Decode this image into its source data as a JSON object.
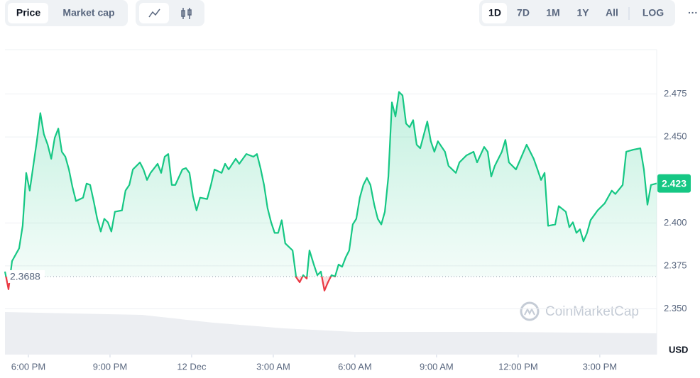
{
  "controls": {
    "metric": [
      "Price",
      "Market cap"
    ],
    "range": [
      "1D",
      "7D",
      "1M",
      "1Y",
      "All"
    ],
    "scale": "LOG",
    "more": "···"
  },
  "chart_data": {
    "type": "line",
    "x": [
      17.14,
      17.27,
      17.4,
      17.66,
      17.79,
      17.92,
      18.05,
      18.18,
      18.31,
      18.44,
      18.57,
      18.71,
      18.84,
      18.97,
      19.1,
      19.23,
      19.36,
      19.49,
      19.62,
      19.75,
      20.01,
      20.14,
      20.27,
      20.4,
      20.53,
      20.66,
      20.79,
      20.92,
      21.05,
      21.18,
      21.44,
      21.57,
      21.71,
      21.84,
      22.1,
      22.23,
      22.36,
      22.49,
      22.75,
      22.88,
      23.01,
      23.14,
      23.27,
      23.4,
      23.66,
      23.79,
      23.92,
      24.05,
      24.18,
      24.31,
      24.57,
      24.71,
      24.84,
      25.1,
      25.23,
      25.36,
      25.62,
      25.75,
      26.01,
      26.27,
      26.4,
      26.53,
      26.66,
      26.79,
      26.92,
      27.05,
      27.18,
      27.31,
      27.44,
      27.71,
      27.84,
      27.97,
      28.1,
      28.23,
      28.33,
      28.49,
      28.62,
      28.75,
      28.88,
      29.01,
      29.14,
      29.27,
      29.4,
      29.53,
      29.66,
      29.79,
      29.92,
      30.05,
      30.18,
      30.31,
      30.44,
      30.57,
      30.71,
      30.84,
      30.97,
      31.1,
      31.23,
      31.36,
      31.49,
      31.62,
      31.75,
      31.88,
      32.01,
      32.14,
      32.27,
      32.4,
      32.66,
      32.79,
      32.92,
      33.05,
      33.31,
      33.44,
      33.71,
      33.84,
      34.1,
      34.36,
      34.49,
      34.75,
      34.88,
      35.01,
      35.14,
      35.4,
      35.53,
      35.66,
      35.92,
      36.31,
      36.57,
      36.71,
      36.84,
      36.97,
      37.1,
      37.36,
      37.49,
      37.75,
      37.88,
      38.01,
      38.14,
      38.27,
      38.4,
      38.53,
      38.66,
      38.92,
      39.18,
      39.44,
      39.57,
      39.84,
      39.97,
      40.23,
      40.49,
      40.62,
      40.75,
      40.88,
      41.09
    ],
    "series": [
      {
        "color": "#16c784",
        "negative_color": "#ea3943",
        "values": [
          2.3717,
          2.3614,
          2.3778,
          2.3852,
          2.3983,
          2.4291,
          2.4188,
          2.4332,
          2.4475,
          2.4639,
          2.4516,
          2.4455,
          2.4373,
          2.4496,
          2.4549,
          2.4414,
          2.4385,
          2.4311,
          2.4209,
          2.4127,
          2.4147,
          2.4229,
          2.4221,
          2.4127,
          2.4024,
          2.395,
          2.4024,
          2.4004,
          2.395,
          2.4065,
          2.4073,
          2.4188,
          2.4221,
          2.4311,
          2.4352,
          2.4311,
          2.425,
          2.4291,
          2.4344,
          2.4291,
          2.4385,
          2.4401,
          2.4221,
          2.4221,
          2.4311,
          2.4319,
          2.4291,
          2.4155,
          2.4073,
          2.4147,
          2.4139,
          2.4221,
          2.4311,
          2.4291,
          2.4344,
          2.4311,
          2.4373,
          2.4344,
          2.4401,
          2.4385,
          2.4401,
          2.4319,
          2.4221,
          2.4086,
          2.4004,
          2.3942,
          2.3942,
          2.4016,
          2.3881,
          2.384,
          2.3684,
          2.3655,
          2.3696,
          2.3676,
          2.384,
          2.3758,
          2.3696,
          2.3717,
          2.3606,
          2.3655,
          2.3696,
          2.3688,
          2.3758,
          2.3745,
          2.3799,
          2.384,
          2.3991,
          2.4024,
          2.4147,
          2.4221,
          2.4262,
          2.4221,
          2.4106,
          2.4024,
          2.3991,
          2.4065,
          2.427,
          2.4701,
          2.4619,
          2.4762,
          2.4742,
          2.4578,
          2.4557,
          2.4598,
          2.4455,
          2.4434,
          2.459,
          2.4475,
          2.4414,
          2.4475,
          2.4414,
          2.4332,
          2.4291,
          2.4352,
          2.4393,
          2.4414,
          2.4352,
          2.4442,
          2.4414,
          2.427,
          2.4332,
          2.4414,
          2.4483,
          2.4352,
          2.4311,
          2.4455,
          2.4373,
          2.4311,
          2.425,
          2.4291,
          2.3983,
          2.3991,
          2.4098,
          2.4065,
          2.3975,
          2.4004,
          2.3942,
          2.3963,
          2.3893,
          2.3942,
          2.4016,
          2.4073,
          2.4114,
          2.4188,
          2.4168,
          2.4221,
          2.4414,
          2.4426,
          2.4434,
          2.4311,
          2.4106,
          2.4221,
          2.423
        ]
      }
    ],
    "baseline": 2.3688,
    "current_value": 2.423,
    "y_unit": "USD",
    "watermark": "CoinMarketCap",
    "xlim": [
      17.14,
      41.09
    ],
    "xticks": [
      {
        "value": 18,
        "label": "6:00 PM"
      },
      {
        "value": 21,
        "label": "9:00 PM"
      },
      {
        "value": 24,
        "label": "12 Dec"
      },
      {
        "value": 27,
        "label": "3:00 AM"
      },
      {
        "value": 30,
        "label": "6:00 AM"
      },
      {
        "value": 33,
        "label": "9:00 AM"
      },
      {
        "value": 36,
        "label": "12:00 PM"
      },
      {
        "value": 39,
        "label": "3:00 PM"
      }
    ],
    "ylim": [
      2.3234,
      2.5008
    ],
    "yticks": [
      {
        "value": 2.35,
        "label": "2.350"
      },
      2.375,
      {
        "value": 2.4,
        "label": "2.400"
      },
      {
        "value": 2.45,
        "label": "2.450"
      },
      2.475
    ],
    "grid": true
  }
}
